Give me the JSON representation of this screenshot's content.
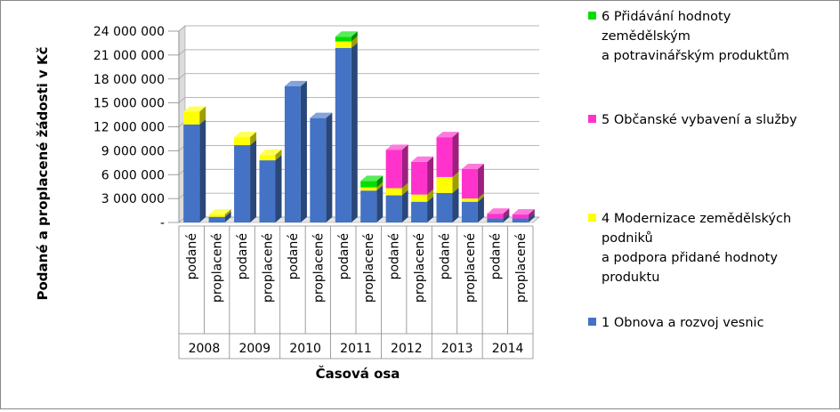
{
  "chart_data": {
    "type": "bar",
    "stacked": true,
    "three_d": true,
    "ylabel": "Podané a proplacené žádosti v Kč",
    "xlabel": "Časová osa",
    "ylim": [
      0,
      24000000
    ],
    "yticks": [
      {
        "value": 0,
        "label": "-"
      },
      {
        "value": 3000000,
        "label": "3 000 000"
      },
      {
        "value": 6000000,
        "label": "6 000 000"
      },
      {
        "value": 9000000,
        "label": "9 000 000"
      },
      {
        "value": 12000000,
        "label": "12 000 000"
      },
      {
        "value": 15000000,
        "label": "15 000 000"
      },
      {
        "value": 18000000,
        "label": "18 000 000"
      },
      {
        "value": 21000000,
        "label": "21 000 000"
      },
      {
        "value": 24000000,
        "label": "24 000 000"
      }
    ],
    "grid": true,
    "legend_position": "right",
    "years": [
      "2008",
      "2009",
      "2010",
      "2011",
      "2012",
      "2013",
      "2014"
    ],
    "categories": [
      "podané",
      "proplacené",
      "podané",
      "proplacené",
      "podané",
      "proplacené",
      "podané",
      "proplacené",
      "podané",
      "proplacené",
      "podané",
      "proplacené",
      "podané",
      "proplacené"
    ],
    "series": [
      {
        "name": "1 Obnova a rozvoj vesnic",
        "color": "#4472C4",
        "values": [
          12300000,
          700000,
          9700000,
          7800000,
          17100000,
          13100000,
          21900000,
          4000000,
          3400000,
          2600000,
          3700000,
          2600000,
          500000,
          500000
        ]
      },
      {
        "name": "4 Modernizace zemědělských podniků a podpora přidané hodnoty produktu",
        "color": "#FFFF00",
        "values": [
          1600000,
          300000,
          1000000,
          700000,
          0,
          0,
          800000,
          400000,
          900000,
          900000,
          2000000,
          400000,
          0,
          0
        ]
      },
      {
        "name": "5 Občanské vybavení a služby",
        "color": "#FF33CC",
        "values": [
          0,
          0,
          0,
          0,
          0,
          0,
          0,
          0,
          4800000,
          4100000,
          5000000,
          3700000,
          600000,
          500000
        ]
      },
      {
        "name": "6 Přidávání hodnoty zemědělským a potravinářským produktům",
        "color": "#00E000",
        "values": [
          0,
          0,
          0,
          0,
          0,
          0,
          600000,
          800000,
          0,
          0,
          0,
          0,
          0,
          0
        ]
      }
    ]
  },
  "legend": {
    "items": [
      {
        "lines": [
          "6 Přidávání hodnoty",
          "zemědělským",
          "a potravinářským produktům"
        ],
        "color": "#00E000"
      },
      {
        "lines": [
          "5 Občanské vybavení a služby"
        ],
        "color": "#FF33CC"
      },
      {
        "lines": [
          "4 Modernizace zemědělských",
          "podniků",
          "a podpora přidané hodnoty",
          "produktu"
        ],
        "color": "#FFFF00"
      },
      {
        "lines": [
          "1 Obnova a rozvoj vesnic"
        ],
        "color": "#4472C4"
      }
    ]
  }
}
